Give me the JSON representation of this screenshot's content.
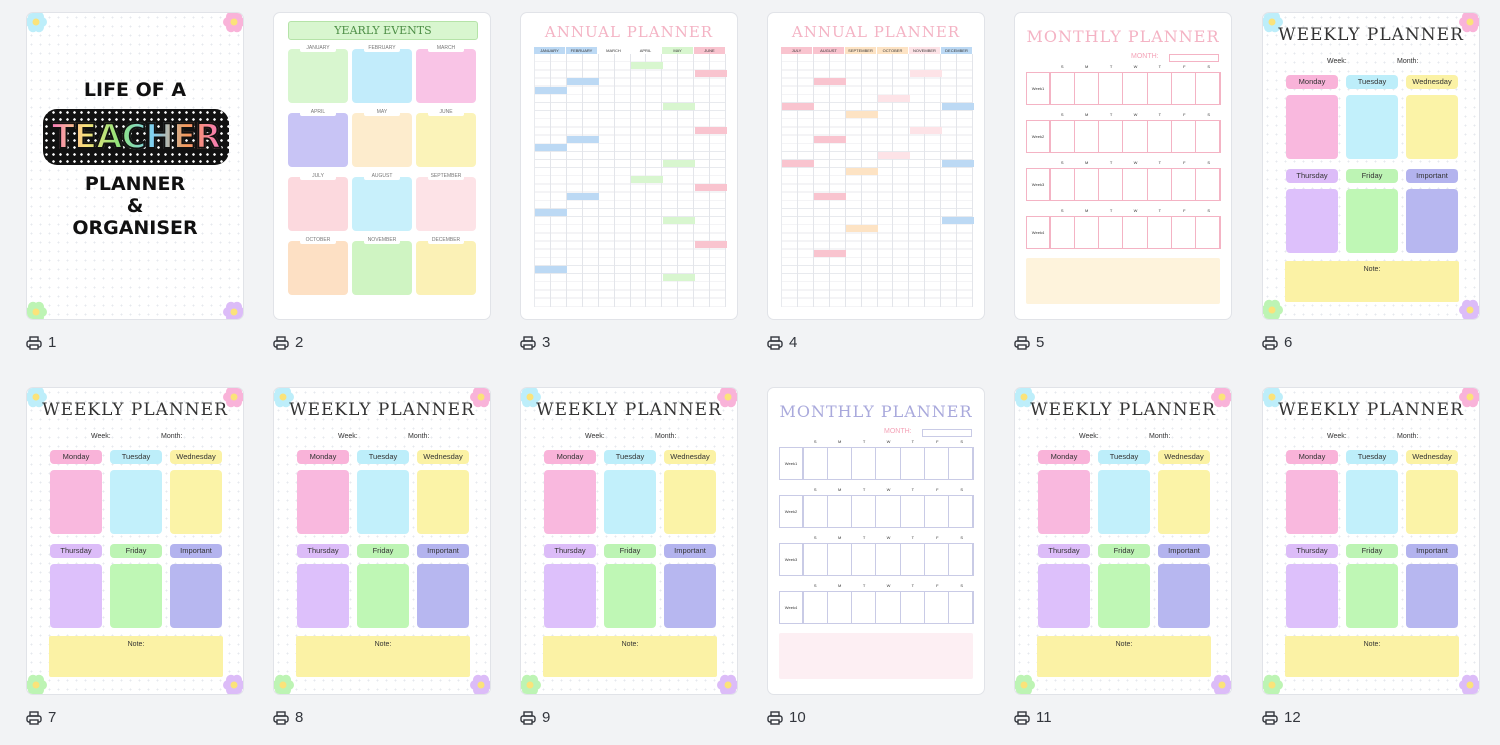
{
  "pages": [
    {
      "number": "1",
      "type": "cover",
      "line1": "LIFE OF A",
      "line2": "TEACHER",
      "line3": "PLANNER",
      "line4": "&",
      "line5": "ORGANISER"
    },
    {
      "number": "2",
      "type": "yearly",
      "title": "YEARLY EVENTS",
      "months": [
        "JANUARY",
        "FEBRUARY",
        "MARCH",
        "APRIL",
        "MAY",
        "JUNE",
        "JULY",
        "AUGUST",
        "SEPTEMBER",
        "OCTOBER",
        "NOVEMBER",
        "DECEMBER"
      ]
    },
    {
      "number": "3",
      "type": "annual",
      "title": "ANNUAL PLANNER",
      "months": [
        "JANUARY",
        "FEBRUARY",
        "MARCH",
        "APRIL",
        "MAY",
        "JUNE"
      ]
    },
    {
      "number": "4",
      "type": "annual",
      "title": "ANNUAL PLANNER",
      "months": [
        "JULY",
        "AUGUST",
        "SEPTEMBER",
        "OCTOBER",
        "NOVEMBER",
        "DECEMBER"
      ]
    },
    {
      "number": "5",
      "type": "monthly",
      "title": "MONTHLY PLANNER",
      "month_label": "MONTH:",
      "weeks": [
        "Week1",
        "Week2",
        "Week3",
        "Week4"
      ],
      "days": [
        "S",
        "M",
        "T",
        "W",
        "T",
        "F",
        "S"
      ]
    },
    {
      "number": "6",
      "type": "weekly",
      "title": "WEEKLY PLANNER",
      "week_label": "Week:",
      "month_label": "Month:",
      "days": [
        "Monday",
        "Tuesday",
        "Wednesday",
        "Thursday",
        "Friday",
        "Important"
      ],
      "note_label": "Note:"
    },
    {
      "number": "7",
      "type": "weekly",
      "title": "WEEKLY PLANNER",
      "week_label": "Week:",
      "month_label": "Month:",
      "days": [
        "Monday",
        "Tuesday",
        "Wednesday",
        "Thursday",
        "Friday",
        "Important"
      ],
      "note_label": "Note:"
    },
    {
      "number": "8",
      "type": "weekly",
      "title": "WEEKLY PLANNER",
      "week_label": "Week:",
      "month_label": "Month:",
      "days": [
        "Monday",
        "Tuesday",
        "Wednesday",
        "Thursday",
        "Friday",
        "Important"
      ],
      "note_label": "Note:"
    },
    {
      "number": "9",
      "type": "weekly",
      "title": "WEEKLY PLANNER",
      "week_label": "Week:",
      "month_label": "Month:",
      "days": [
        "Monday",
        "Tuesday",
        "Wednesday",
        "Thursday",
        "Friday",
        "Important"
      ],
      "note_label": "Note:"
    },
    {
      "number": "10",
      "type": "monthly",
      "title": "MONTHLY PLANNER",
      "month_label": "MONTH:",
      "weeks": [
        "Week1",
        "Week2",
        "Week3",
        "Week4"
      ],
      "days": [
        "S",
        "M",
        "T",
        "W",
        "T",
        "F",
        "S"
      ]
    },
    {
      "number": "11",
      "type": "weekly",
      "title": "WEEKLY PLANNER",
      "week_label": "Week:",
      "month_label": "Month:",
      "days": [
        "Monday",
        "Tuesday",
        "Wednesday",
        "Thursday",
        "Friday",
        "Important"
      ],
      "note_label": "Note:"
    },
    {
      "number": "12",
      "type": "weekly",
      "title": "WEEKLY PLANNER",
      "week_label": "Week:",
      "month_label": "Month:",
      "days": [
        "Monday",
        "Tuesday",
        "Wednesday",
        "Thursday",
        "Friday",
        "Important"
      ],
      "note_label": "Note:"
    }
  ],
  "icons": {
    "print": "printer-icon"
  },
  "colors": {
    "background": "#f2f3f5",
    "weekly_tags": [
      "#f9b3d9",
      "#bdeefa",
      "#fbf2a5",
      "#dcbcf8",
      "#bdf4b4",
      "#b3b3ee"
    ],
    "weekly_boxes": [
      "#f9b8de",
      "#c2f0fb",
      "#fbf3a7",
      "#ddc0fb",
      "#bff7b5",
      "#b7b7f0"
    ],
    "yearly_boxes": [
      "#d8f6cf",
      "#c2ecfb",
      "#f9c4e6",
      "#c8c4f5",
      "#fdeccd",
      "#fbf3b9",
      "#fcd9de",
      "#c8f0fb",
      "#fde3e7",
      "#fde0c4",
      "#cff4c2",
      "#fbf1b6"
    ],
    "monthly_pink": "#f4b3c4",
    "monthly_blue": "#c9cbe6"
  }
}
